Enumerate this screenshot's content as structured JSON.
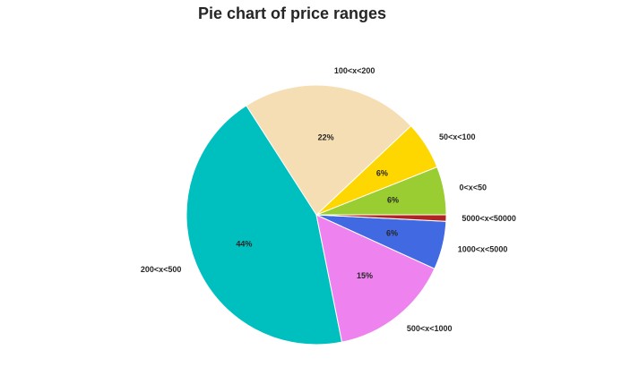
{
  "chart_data": {
    "type": "pie",
    "title": "Pie chart of price ranges",
    "slices": [
      {
        "label": "0<x<50",
        "value": 6,
        "pct_text": "6%",
        "color": "#9ACD32"
      },
      {
        "label": "50<x<100",
        "value": 6,
        "pct_text": "6%",
        "color": "#FFD700"
      },
      {
        "label": "100<x<200",
        "value": 22,
        "pct_text": "22%",
        "color": "#F5DEB3"
      },
      {
        "label": "200<x<500",
        "value": 44,
        "pct_text": "44%",
        "color": "#00BFBF"
      },
      {
        "label": "500<x<1000",
        "value": 15,
        "pct_text": "15%",
        "color": "#EE82EE"
      },
      {
        "label": "1000<x<5000",
        "value": 6,
        "pct_text": "6%",
        "color": "#4169E1"
      },
      {
        "label": "5000<x<50000",
        "value": 0.8,
        "pct_text": "",
        "color": "#B22222"
      }
    ]
  }
}
